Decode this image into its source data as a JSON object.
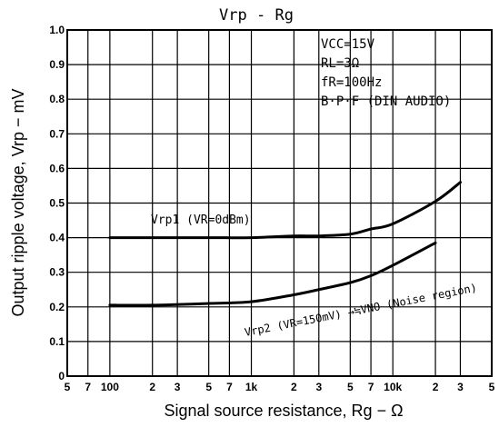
{
  "chart_data": {
    "type": "line",
    "title": "Vrp - Rg",
    "xlabel": "Signal source resistance, Rg − Ω",
    "ylabel": "Output ripple voltage, Vrp − mV",
    "x_scale": "log",
    "xlim": [
      50,
      50000
    ],
    "ylim": [
      0,
      1.0
    ],
    "x_ticks": [
      {
        "value": 50,
        "label": "5"
      },
      {
        "value": 70,
        "label": "7"
      },
      {
        "value": 100,
        "label": "100"
      },
      {
        "value": 200,
        "label": "2"
      },
      {
        "value": 300,
        "label": "3"
      },
      {
        "value": 500,
        "label": "5"
      },
      {
        "value": 700,
        "label": "7"
      },
      {
        "value": 1000,
        "label": "1k"
      },
      {
        "value": 2000,
        "label": "2"
      },
      {
        "value": 3000,
        "label": "3"
      },
      {
        "value": 5000,
        "label": "5"
      },
      {
        "value": 7000,
        "label": "7"
      },
      {
        "value": 10000,
        "label": "10k"
      },
      {
        "value": 20000,
        "label": "2"
      },
      {
        "value": 30000,
        "label": "3"
      },
      {
        "value": 50000,
        "label": "5"
      }
    ],
    "y_ticks": [
      {
        "value": 0,
        "label": "0"
      },
      {
        "value": 0.1,
        "label": "0.1"
      },
      {
        "value": 0.2,
        "label": "0.2"
      },
      {
        "value": 0.3,
        "label": "0.3"
      },
      {
        "value": 0.4,
        "label": "0.4"
      },
      {
        "value": 0.5,
        "label": "0.5"
      },
      {
        "value": 0.6,
        "label": "0.6"
      },
      {
        "value": 0.7,
        "label": "0.7"
      },
      {
        "value": 0.8,
        "label": "0.8"
      },
      {
        "value": 0.9,
        "label": "0.9"
      },
      {
        "value": 1.0,
        "label": "1.0"
      }
    ],
    "grid": true,
    "conditions": [
      "VCC=15V",
      "RL=3Ω",
      "fR=100Hz",
      "B·P·F (DIN AUDIO)"
    ],
    "series": [
      {
        "name": "Vrp1 (VR=0dBm)",
        "x": [
          100,
          200,
          500,
          1000,
          2000,
          3000,
          5000,
          7000,
          10000,
          20000,
          30000
        ],
        "y": [
          0.4,
          0.4,
          0.4,
          0.4,
          0.405,
          0.405,
          0.41,
          0.425,
          0.44,
          0.505,
          0.56
        ]
      },
      {
        "name": "Vrp2 (VR=150mV) →≒VNO (Noise region)",
        "x": [
          100,
          200,
          500,
          1000,
          2000,
          3000,
          5000,
          7000,
          10000,
          20000
        ],
        "y": [
          0.205,
          0.205,
          0.21,
          0.215,
          0.235,
          0.25,
          0.27,
          0.29,
          0.32,
          0.385
        ]
      }
    ]
  }
}
